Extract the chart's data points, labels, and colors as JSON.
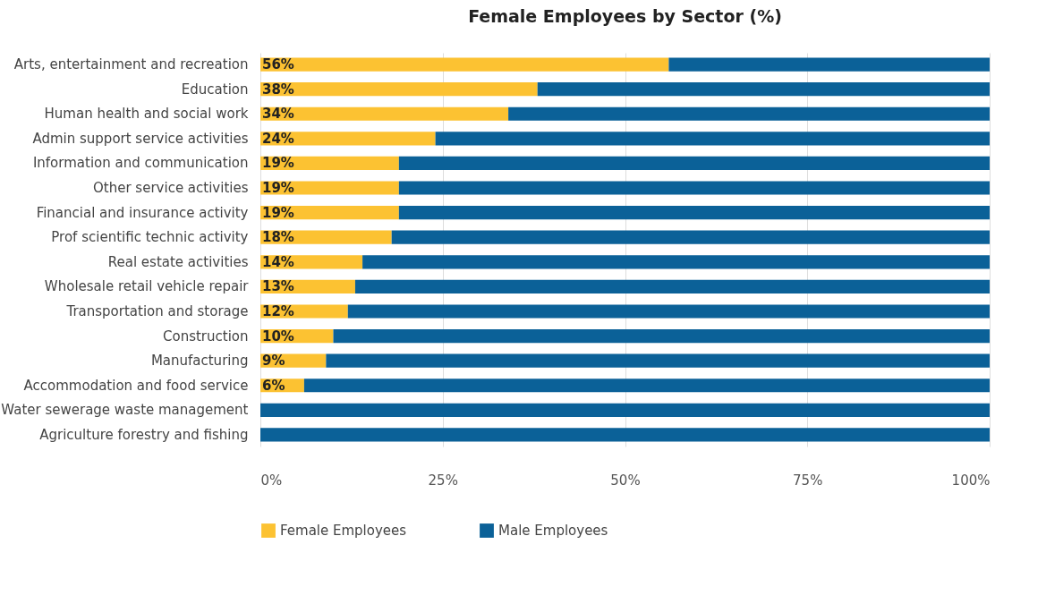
{
  "chart_data": {
    "type": "bar",
    "orientation": "horizontal",
    "stacked": true,
    "title": "Female Employees by Sector (%)",
    "categories": [
      "Arts, entertainment and recreation",
      "Education",
      "Human health and social work",
      "Admin support service activities",
      "Information and communication",
      "Other service activities",
      "Financial and insurance activity",
      "Prof scientific technic activity",
      "Real estate activities",
      "Wholesale retail vehicle repair",
      "Transportation and storage",
      "Construction",
      "Manufacturing",
      "Accommodation and food service",
      "Water sewerage waste management",
      "Agriculture forestry and fishing"
    ],
    "series": [
      {
        "name": "Female Employees",
        "color": "#fcc232",
        "values": [
          56,
          38,
          34,
          24,
          19,
          19,
          19,
          18,
          14,
          13,
          12,
          10,
          9,
          6,
          0,
          0
        ],
        "value_labels": [
          "56%",
          "38%",
          "34%",
          "24%",
          "19%",
          "19%",
          "19%",
          "18%",
          "14%",
          "13%",
          "12%",
          "10%",
          "9%",
          "6%",
          null,
          null
        ]
      },
      {
        "name": "Male Employees",
        "color": "#0b6198",
        "values": [
          44,
          62,
          66,
          76,
          81,
          81,
          81,
          82,
          86,
          87,
          88,
          90,
          91,
          94,
          100,
          100
        ]
      }
    ],
    "xlim": [
      0,
      100
    ],
    "xticks": [
      {
        "value": 0,
        "label": "0%"
      },
      {
        "value": 25,
        "label": "25%"
      },
      {
        "value": 50,
        "label": "50%"
      },
      {
        "value": 75,
        "label": "75%"
      },
      {
        "value": 100,
        "label": "100%"
      }
    ],
    "grid": "x",
    "legend": "bottom"
  }
}
